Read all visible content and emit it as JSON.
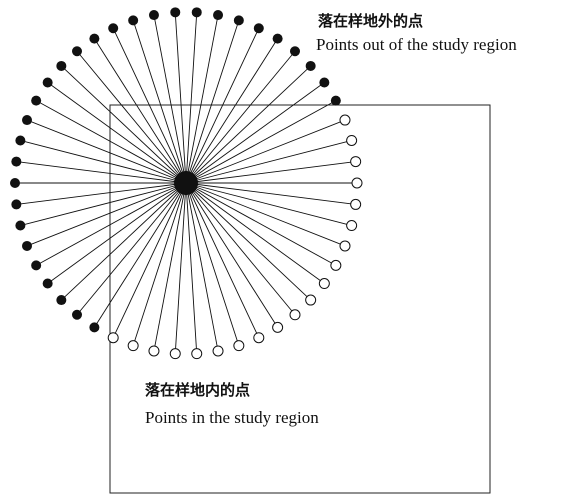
{
  "labels": {
    "outside_cn": "落在样地外的点",
    "outside_en": "Points out of the study region",
    "inside_cn": "落在样地内的点",
    "inside_en": "Points in the study region"
  },
  "diagram": {
    "point_count": 50,
    "outside_point_style": "filled black circle",
    "inside_point_style": "hollow circle",
    "center_point_style": "filled black circle",
    "stroke_color": "#111111"
  }
}
